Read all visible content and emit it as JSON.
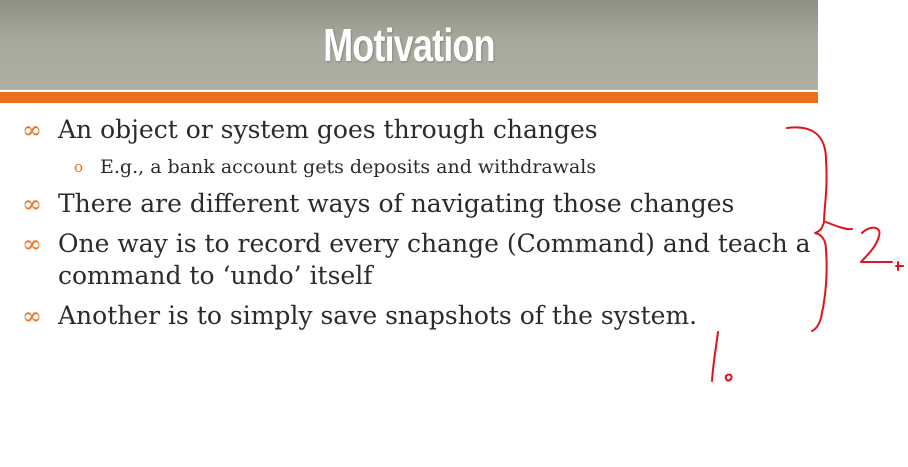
{
  "slide": {
    "title": "Motivation",
    "bullets": [
      {
        "text": "An object or system goes through changes",
        "sub": [
          "E.g., a bank account gets deposits and withdrawals"
        ]
      },
      {
        "text": "There are different ways of navigating those changes",
        "sub": []
      },
      {
        "text": "One way is to record every change (Command) and teach a command to ‘undo’ itself",
        "sub": []
      },
      {
        "text": "Another is to simply save snapshots of the system.",
        "sub": []
      }
    ]
  },
  "markers": {
    "bullet_glyph": "∞",
    "sub_glyph": "o"
  },
  "annotations": {
    "handwritten": [
      "2",
      "1"
    ],
    "ink_color": "#e1121e"
  },
  "colors": {
    "accent": "#ec6f1c",
    "title_bg": "#a7a99c",
    "title_text": "#ffffff",
    "body_text": "#2b2b2b"
  }
}
